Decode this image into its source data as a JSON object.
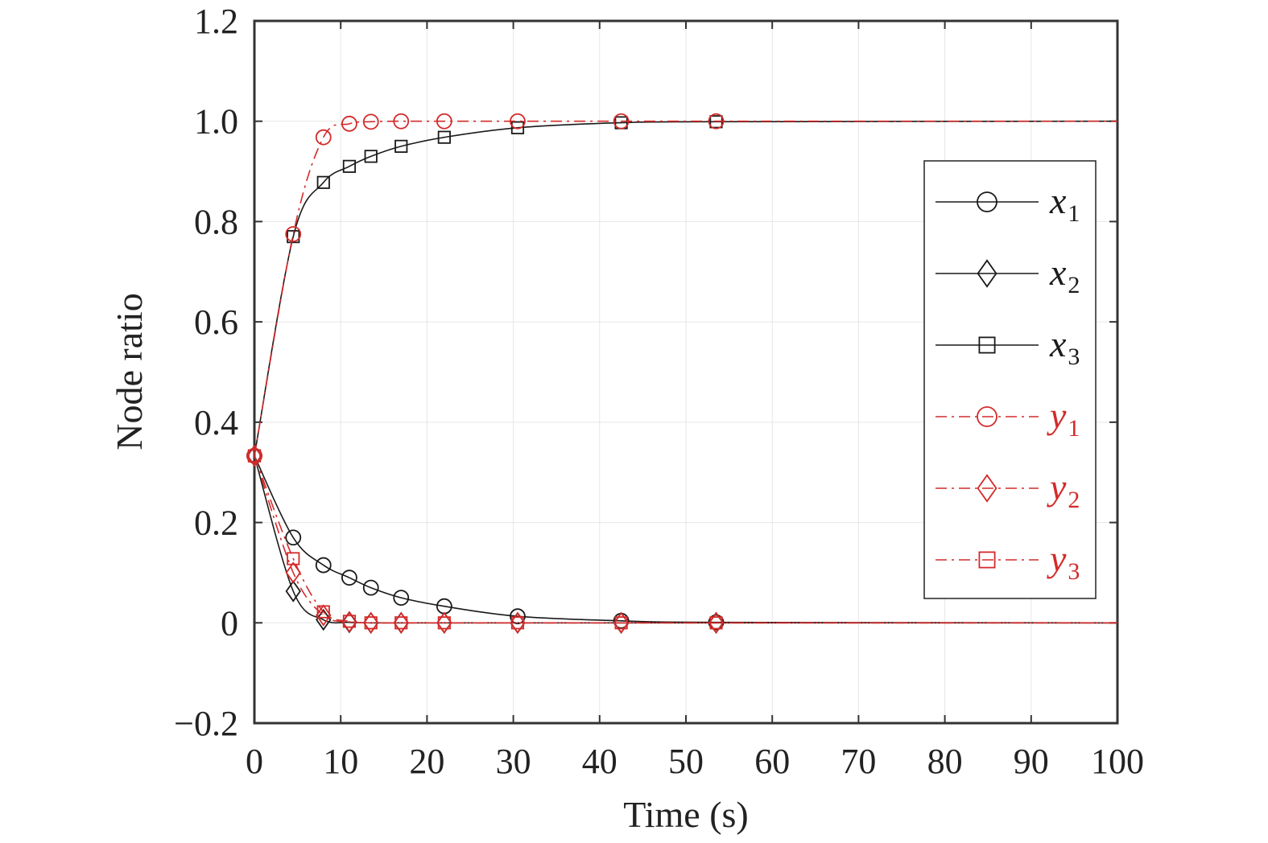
{
  "chart_data": {
    "type": "line",
    "title": "",
    "xlabel": "Time (s)",
    "ylabel": "Node ratio",
    "xlim": [
      0,
      100
    ],
    "ylim": [
      -0.2,
      1.2
    ],
    "xticks": [
      0,
      10,
      20,
      30,
      40,
      50,
      60,
      70,
      80,
      90,
      100
    ],
    "xtick_labels": [
      "0",
      "10",
      "20",
      "30",
      "40",
      "50",
      "60",
      "70",
      "80",
      "90",
      "100"
    ],
    "yticks": [
      -0.2,
      0,
      0.2,
      0.4,
      0.6,
      0.8,
      1.0,
      1.2
    ],
    "ytick_labels": [
      "−0.2",
      "0",
      "0.2",
      "0.4",
      "0.6",
      "0.8",
      "1.0",
      "1.2"
    ],
    "grid": true,
    "legend_position": "right",
    "series": [
      {
        "name": "x1",
        "label_base": "x",
        "label_sub": "1",
        "color": "#1a1a1a",
        "linestyle": "solid",
        "marker": "circle",
        "x": [
          0,
          4.5,
          8,
          11,
          13.5,
          17,
          22,
          30.5,
          42.5,
          53.5,
          100
        ],
        "y": [
          0.333,
          0.17,
          0.115,
          0.09,
          0.07,
          0.05,
          0.033,
          0.013,
          0.004,
          0.001,
          0
        ]
      },
      {
        "name": "x2",
        "label_base": "x",
        "label_sub": "2",
        "color": "#1a1a1a",
        "linestyle": "solid",
        "marker": "diamond",
        "x": [
          0,
          4.5,
          8,
          11,
          13.5,
          17,
          22,
          30.5,
          42.5,
          53.5,
          100
        ],
        "y": [
          0.333,
          0.063,
          0.006,
          0.001,
          0,
          0,
          0,
          0,
          0,
          0,
          0
        ]
      },
      {
        "name": "x3",
        "label_base": "x",
        "label_sub": "3",
        "color": "#1a1a1a",
        "linestyle": "solid",
        "marker": "square",
        "x": [
          0,
          4.5,
          8,
          11,
          13.5,
          17,
          22,
          30.5,
          42.5,
          53.5,
          100
        ],
        "y": [
          0.333,
          0.77,
          0.878,
          0.91,
          0.93,
          0.95,
          0.968,
          0.987,
          0.997,
          0.999,
          1.0
        ]
      },
      {
        "name": "y1",
        "label_base": "y",
        "label_sub": "1",
        "color": "#d42a2a",
        "linestyle": "dashdot",
        "marker": "circle",
        "x": [
          0,
          4.5,
          8,
          11,
          13.5,
          17,
          22,
          30.5,
          42.5,
          53.5,
          100
        ],
        "y": [
          0.333,
          0.775,
          0.968,
          0.995,
          0.999,
          1.0,
          1.0,
          1.0,
          1.0,
          1.0,
          1.0
        ]
      },
      {
        "name": "y2",
        "label_base": "y",
        "label_sub": "2",
        "color": "#d42a2a",
        "linestyle": "dashdot",
        "marker": "diamond",
        "x": [
          0,
          4.5,
          8,
          11,
          13.5,
          17,
          22,
          30.5,
          42.5,
          53.5,
          100
        ],
        "y": [
          0.333,
          0.1,
          0.015,
          0.002,
          0,
          0,
          0,
          0,
          0,
          0,
          0
        ]
      },
      {
        "name": "y3",
        "label_base": "y",
        "label_sub": "3",
        "color": "#d42a2a",
        "linestyle": "dashdot",
        "marker": "square",
        "x": [
          0,
          4.5,
          8,
          11,
          13.5,
          17,
          22,
          30.5,
          42.5,
          53.5,
          100
        ],
        "y": [
          0.333,
          0.128,
          0.022,
          0.003,
          0,
          0,
          0,
          0,
          0,
          0,
          0
        ]
      }
    ]
  }
}
